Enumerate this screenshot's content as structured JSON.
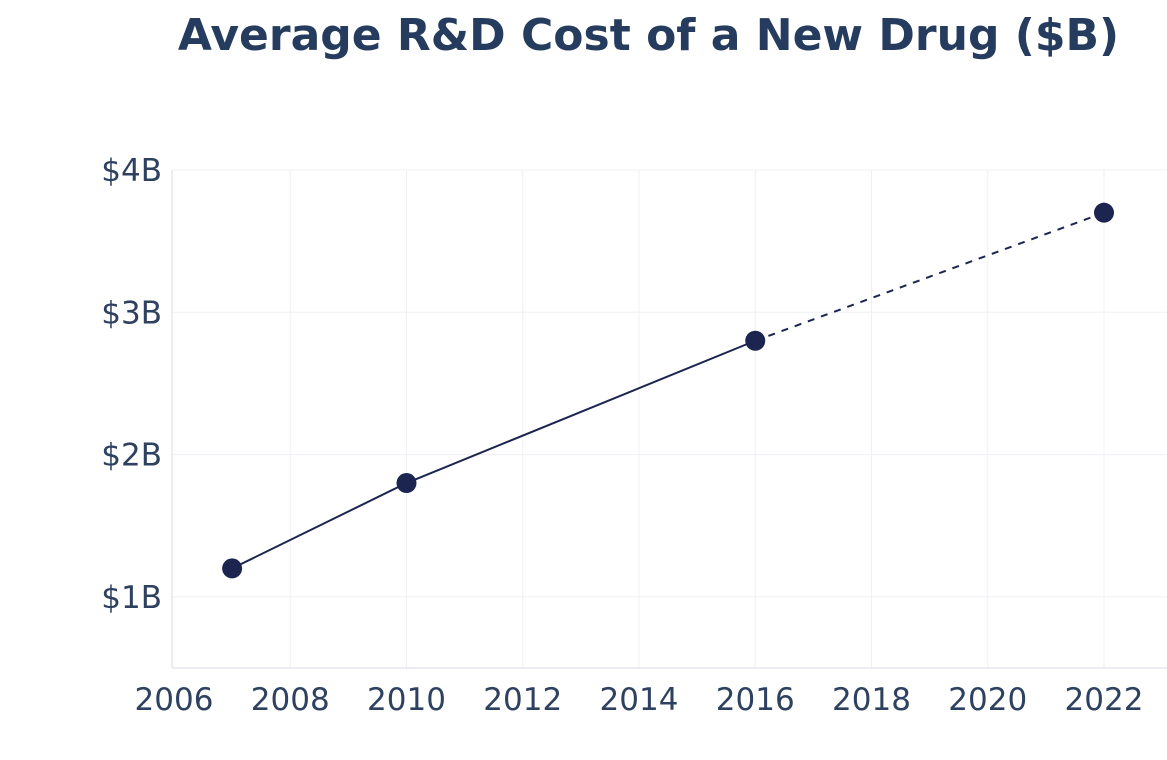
{
  "chart_data": {
    "type": "line",
    "title": "Average R&D Cost of a New Drug ($B)",
    "xlabel": "",
    "ylabel": "",
    "x_ticks": [
      "2006",
      "2008",
      "2010",
      "2012",
      "2014",
      "2016",
      "2018",
      "2020",
      "2022"
    ],
    "y_ticks": [
      "$1B",
      "$2B",
      "$3B",
      "$4B"
    ],
    "xlim": [
      2006,
      2023
    ],
    "ylim": [
      0.5,
      4
    ],
    "grid": true,
    "series": [
      {
        "x": [
          2007,
          2010,
          2016,
          2022
        ],
        "values": [
          1.2,
          1.8,
          2.8,
          3.7
        ],
        "line_styles": [
          "solid",
          "solid",
          "dashed"
        ],
        "color": "#1c2550"
      }
    ]
  }
}
